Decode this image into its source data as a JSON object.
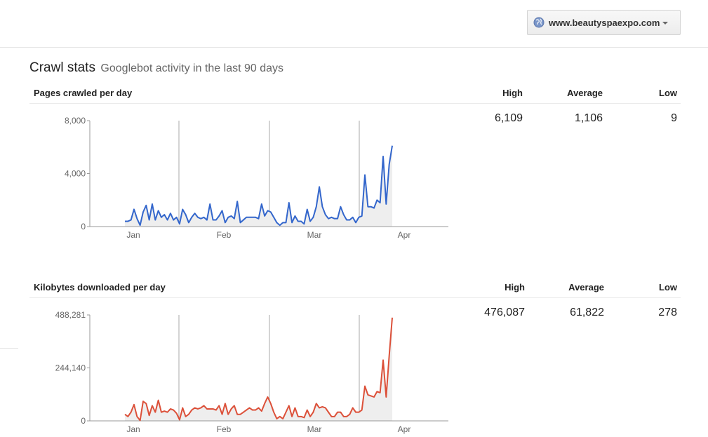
{
  "header": {
    "site": "www.beautyspaexpo.com",
    "site_icon": "globe-icon"
  },
  "page": {
    "title": "Crawl stats",
    "subtitle": "Googlebot activity in the last 90 days"
  },
  "colors": {
    "pages_line": "#3366cc",
    "kb_line": "#dc5039",
    "fill": "#eeeeee",
    "grid": "#aaaaaa"
  },
  "sections": [
    {
      "label": "Pages crawled per day",
      "col_high": "High",
      "col_avg": "Average",
      "col_low": "Low",
      "high": "6,109",
      "avg": "1,106",
      "low": "9"
    },
    {
      "label": "Kilobytes downloaded per day",
      "col_high": "High",
      "col_avg": "Average",
      "col_low": "Low",
      "high": "476,087",
      "avg": "61,822",
      "low": "278"
    }
  ],
  "chart_data": [
    {
      "type": "area",
      "xlabel": "",
      "ylabel": "",
      "x_ticks": [
        "Jan",
        "Feb",
        "Mar",
        "Apr"
      ],
      "y_ticks": [
        "8,000",
        "4,000",
        "0"
      ],
      "ylim": [
        0,
        8000
      ],
      "series": [
        {
          "values": [
            400,
            400,
            500,
            1300,
            600,
            100,
            1100,
            1600,
            500,
            1700,
            500,
            1200,
            700,
            900,
            500,
            1000,
            500,
            700,
            200,
            1300,
            900,
            300,
            700,
            1000,
            700,
            600,
            700,
            500,
            1700,
            500,
            500,
            800,
            1200,
            300,
            700,
            800,
            600,
            1900,
            300,
            500,
            700,
            700,
            700,
            700,
            600,
            1700,
            800,
            1200,
            1100,
            700,
            300,
            100,
            300,
            300,
            1800,
            300,
            800,
            400,
            400,
            200,
            1300,
            400,
            700,
            1500,
            3000,
            1500,
            900,
            600,
            700,
            600,
            600,
            1500,
            900,
            500,
            500,
            700,
            300,
            700,
            800,
            3900,
            1500,
            1500,
            1400,
            2000,
            1800,
            5300,
            1700,
            4700,
            6109
          ]
        }
      ]
    },
    {
      "type": "area",
      "xlabel": "",
      "ylabel": "",
      "x_ticks": [
        "Jan",
        "Feb",
        "Mar",
        "Apr"
      ],
      "y_ticks": [
        "488,281",
        "244,140",
        "0"
      ],
      "ylim": [
        0,
        488281
      ],
      "series": [
        {
          "values": [
            30000,
            20000,
            40000,
            75000,
            20000,
            2000,
            90000,
            80000,
            25000,
            70000,
            40000,
            95000,
            40000,
            45000,
            40000,
            55000,
            50000,
            35000,
            5000,
            60000,
            20000,
            30000,
            50000,
            60000,
            55000,
            60000,
            70000,
            55000,
            55000,
            55000,
            50000,
            70000,
            30000,
            80000,
            30000,
            55000,
            70000,
            30000,
            30000,
            40000,
            50000,
            60000,
            50000,
            50000,
            60000,
            45000,
            80000,
            110000,
            80000,
            40000,
            10000,
            20000,
            10000,
            40000,
            70000,
            20000,
            60000,
            20000,
            20000,
            15000,
            50000,
            20000,
            40000,
            80000,
            60000,
            65000,
            60000,
            40000,
            20000,
            20000,
            40000,
            40000,
            20000,
            20000,
            30000,
            60000,
            40000,
            40000,
            50000,
            160000,
            120000,
            115000,
            110000,
            135000,
            130000,
            280000,
            110000,
            300000,
            476087
          ]
        }
      ]
    }
  ]
}
